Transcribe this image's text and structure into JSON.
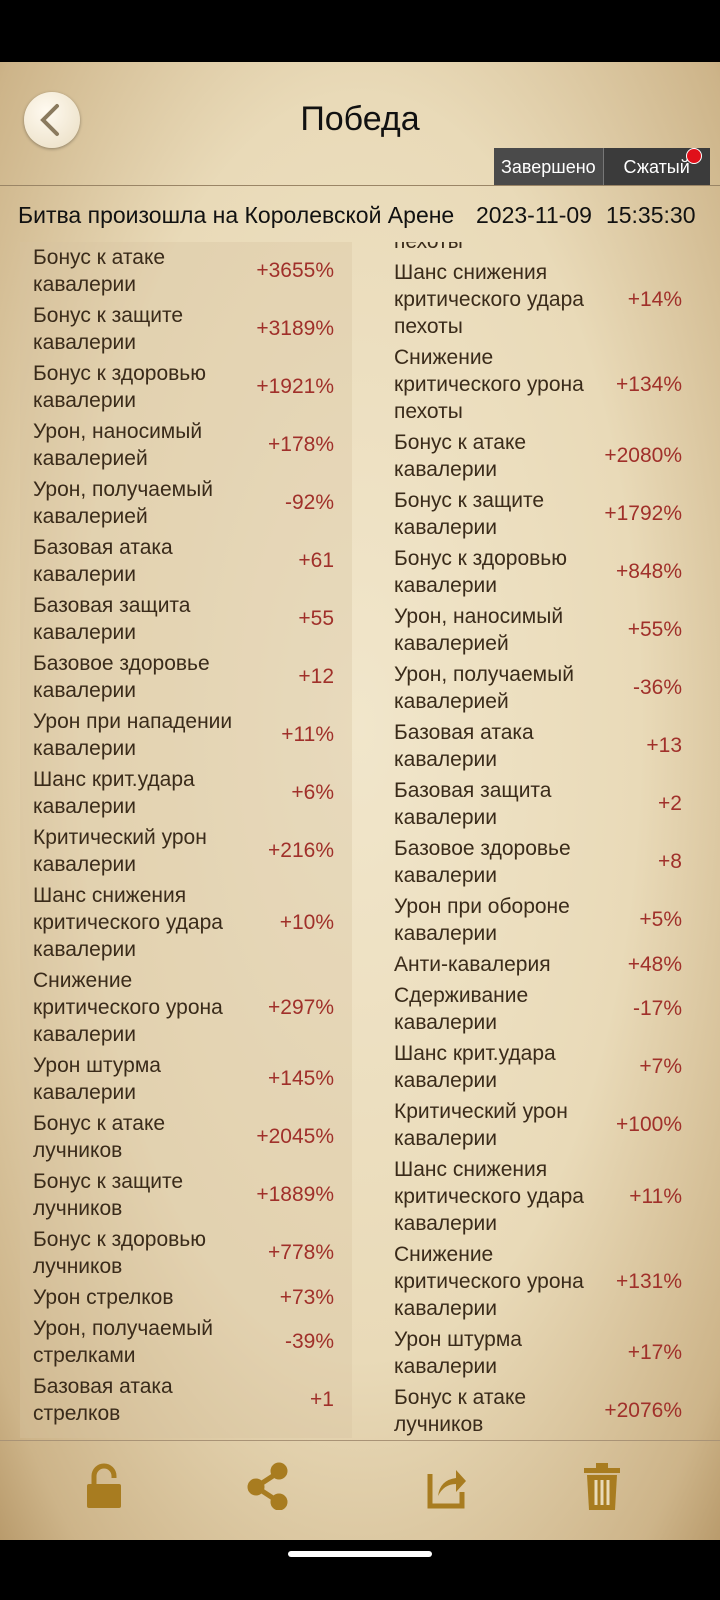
{
  "header": {
    "title": "Победа",
    "tabs": [
      "Завершено",
      "Сжатый"
    ]
  },
  "battle": {
    "location": "Битва произошла на Королевской Арене",
    "date": "2023-11-09",
    "time": "15:35:30"
  },
  "left_stats": [
    {
      "label": "Бонус к атаке\nкавалерии",
      "value": "+3655%"
    },
    {
      "label": "Бонус к защите\nкавалерии",
      "value": "+3189%"
    },
    {
      "label": "Бонус к здоровью\nкавалерии",
      "value": "+1921%"
    },
    {
      "label": "Урон, наносимый\nкавалерией",
      "value": "+178%"
    },
    {
      "label": "Урон, получаемый\nкавалерией",
      "value": "-92%"
    },
    {
      "label": "Базовая атака\nкавалерии",
      "value": "+61"
    },
    {
      "label": "Базовая защита\nкавалерии",
      "value": "+55"
    },
    {
      "label": "Базовое здоровье\nкавалерии",
      "value": "+12"
    },
    {
      "label": "Урон при нападении\nкавалерии",
      "value": "+11%"
    },
    {
      "label": "Шанс крит.удара\nкавалерии",
      "value": "+6%"
    },
    {
      "label": "Критический урон\nкавалерии",
      "value": "+216%"
    },
    {
      "label": "Шанс снижения\nкритического удара\nкавалерии",
      "value": "+10%"
    },
    {
      "label": "Снижение\nкритического урона\nкавалерии",
      "value": "+297%"
    },
    {
      "label": "Урон штурма\nкавалерии",
      "value": "+145%"
    },
    {
      "label": "Бонус к атаке\nлучников",
      "value": "+2045%"
    },
    {
      "label": "Бонус к защите\nлучников",
      "value": "+1889%"
    },
    {
      "label": "Бонус к здоровью\nлучников",
      "value": "+778%"
    },
    {
      "label": "Урон стрелков",
      "value": "+73%"
    },
    {
      "label": "Урон, получаемый\nстрелками",
      "value": "-39%"
    },
    {
      "label": "Базовая атака\nстрелков",
      "value": "+1"
    }
  ],
  "right_stats": [
    {
      "label": "пехоты"
    },
    {
      "label": "Шанс снижения\nкритического удара\nпехоты",
      "value": "+14%"
    },
    {
      "label": "Снижение\nкритического урона\nпехоты",
      "value": "+134%"
    },
    {
      "label": "Бонус к атаке\nкавалерии",
      "value": "+2080%"
    },
    {
      "label": "Бонус к защите\nкавалерии",
      "value": "+1792%"
    },
    {
      "label": "Бонус к здоровью\nкавалерии",
      "value": "+848%"
    },
    {
      "label": "Урон, наносимый\nкавалерией",
      "value": "+55%"
    },
    {
      "label": "Урон, получаемый\nкавалерией",
      "value": "-36%"
    },
    {
      "label": "Базовая атака\nкавалерии",
      "value": "+13"
    },
    {
      "label": "Базовая защита\nкавалерии",
      "value": "+2"
    },
    {
      "label": "Базовое здоровье\nкавалерии",
      "value": "+8"
    },
    {
      "label": "Урон при обороне\nкавалерии",
      "value": "+5%"
    },
    {
      "label": "Анти-кавалерия",
      "value": "+48%"
    },
    {
      "label": "Сдерживание\nкавалерии",
      "value": "-17%"
    },
    {
      "label": "Шанс крит.удара\nкавалерии",
      "value": "+7%"
    },
    {
      "label": "Критический урон\nкавалерии",
      "value": "+100%"
    },
    {
      "label": "Шанс снижения\nкритического удара\nкавалерии",
      "value": "+11%"
    },
    {
      "label": "Снижение\nкритического урона\nкавалерии",
      "value": "+131%"
    },
    {
      "label": "Урон штурма\nкавалерии",
      "value": "+17%"
    },
    {
      "label": "Бонус к атаке\nлучников",
      "value": "+2076%"
    }
  ]
}
